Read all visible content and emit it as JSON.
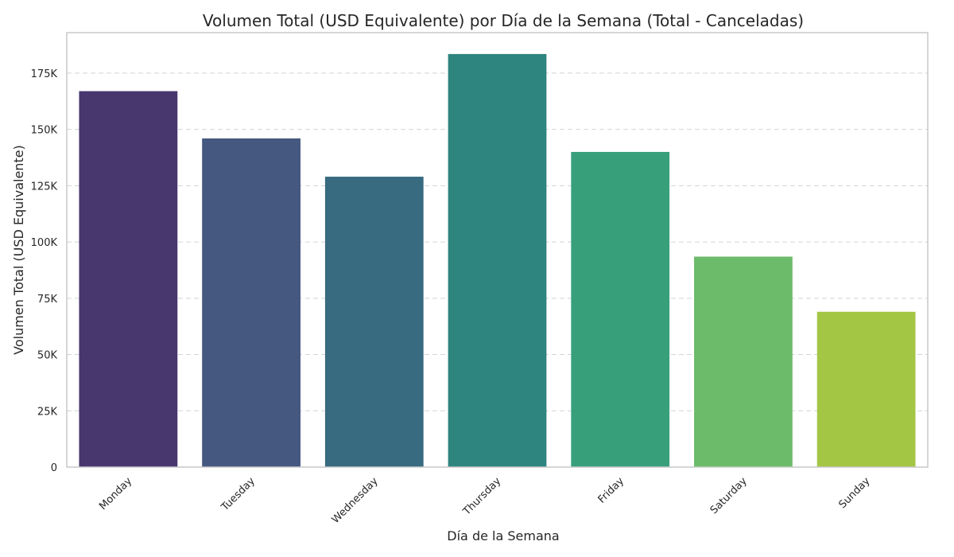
{
  "chart_data": {
    "type": "bar",
    "title": "Volumen Total (USD Equivalente) por Día de la Semana (Total - Canceladas)",
    "xlabel": "Día de la Semana",
    "ylabel": "Volumen Total (USD Equivalente)",
    "categories": [
      "Monday",
      "Tuesday",
      "Wednesday",
      "Thursday",
      "Friday",
      "Saturday",
      "Sunday"
    ],
    "values": [
      167000,
      146000,
      129000,
      183500,
      140000,
      93500,
      69000
    ],
    "colors": [
      "#48366f",
      "#45587f",
      "#386a80",
      "#2e847f",
      "#389f7b",
      "#6cbb6b",
      "#a3c645"
    ],
    "ylim": [
      0,
      193000
    ],
    "yticks": [
      0,
      25000,
      50000,
      75000,
      100000,
      125000,
      150000,
      175000
    ],
    "ytick_labels": [
      "0",
      "25K",
      "50K",
      "75K",
      "100K",
      "125K",
      "150K",
      "175K"
    ],
    "grid": "horizontal-dashed",
    "legend": "none"
  }
}
